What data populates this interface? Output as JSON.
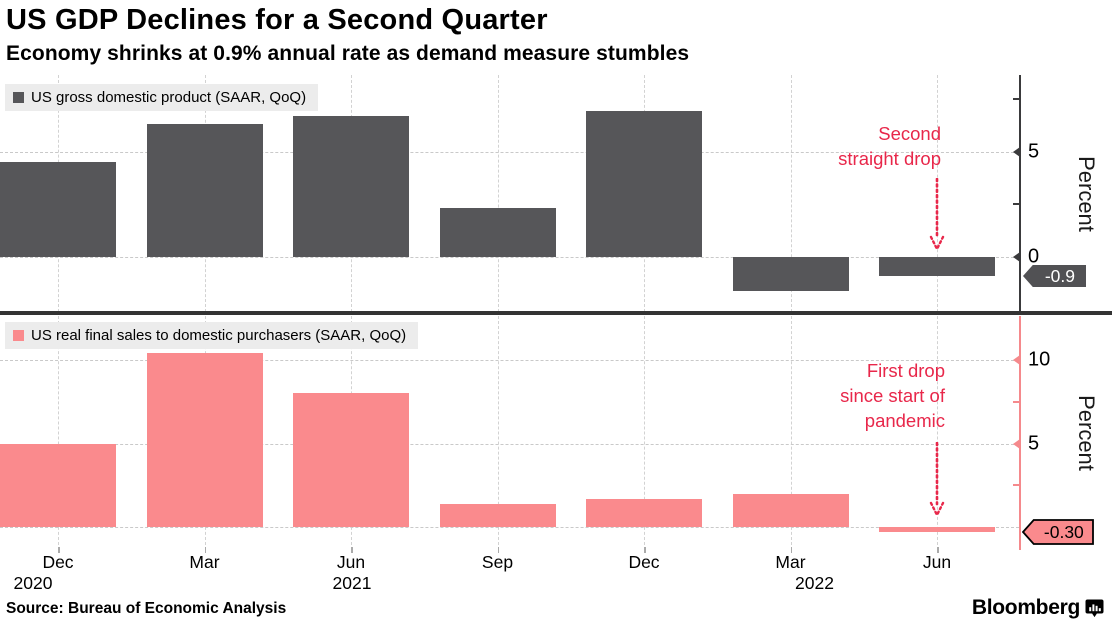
{
  "header": {
    "title": "US GDP Declines for a Second Quarter",
    "subtitle": "Economy shrinks at 0.9% annual rate as demand measure stumbles"
  },
  "source": "Source: Bureau of Economic Analysis",
  "brand": {
    "name": "Bloomberg",
    "icon": "bloomberg-chart-bubble-icon"
  },
  "x_axis": {
    "tick_labels": [
      "Dec",
      "Mar",
      "Jun",
      "Sep",
      "Dec",
      "Mar",
      "Jun"
    ],
    "year_labels": [
      {
        "text": "2020",
        "index": 0,
        "dx": -25
      },
      {
        "text": "2021",
        "index": 2,
        "dx": 1
      },
      {
        "text": "2022",
        "index": 5,
        "dx": 24
      }
    ]
  },
  "colors": {
    "gdp_bar": "#565659",
    "sales_bar": "#fa8a8d",
    "annotation_red": "#e8274a",
    "axis_dark": "#3a3a3c",
    "axis_pink": "#f5898c",
    "legend_bg": "#ececec",
    "badge_dark_bg": "#515154",
    "divider": "#333333"
  },
  "chart_data": [
    {
      "type": "bar",
      "legend": "US gross domestic product (SAAR, QoQ)",
      "categories": [
        "Dec 2020",
        "Mar 2021",
        "Jun 2021",
        "Sep 2021",
        "Dec 2021",
        "Mar 2022",
        "Jun 2022"
      ],
      "values": [
        4.5,
        6.3,
        6.7,
        2.3,
        6.9,
        -1.6,
        -0.9
      ],
      "ylabel": "Percent",
      "yticks_major": [
        0,
        5
      ],
      "yticks_minor": [
        2.5,
        7.5
      ],
      "ylim": [
        -2.7,
        8.6
      ],
      "grid": true,
      "legend_position": "top-left",
      "last_value_badge": "-0.9",
      "annotation": {
        "lines": [
          "Second",
          "straight drop"
        ],
        "target_index": 6
      }
    },
    {
      "type": "bar",
      "legend": "US real final sales to domestic purchasers (SAAR, QoQ)",
      "categories": [
        "Dec 2020",
        "Mar 2021",
        "Jun 2021",
        "Sep 2021",
        "Dec 2021",
        "Mar 2022",
        "Jun 2022"
      ],
      "values": [
        5.0,
        10.4,
        8.0,
        1.4,
        1.7,
        2.0,
        -0.3
      ],
      "ylabel": "Percent",
      "yticks_major": [
        5,
        10
      ],
      "yticks_minor": [
        2.5,
        7.5
      ],
      "ylim": [
        -1.6,
        12.6
      ],
      "grid": true,
      "legend_position": "top-left",
      "last_value_badge": "-0.30",
      "annotation": {
        "lines": [
          "First drop",
          "since start of",
          "pandemic"
        ],
        "target_index": 6
      }
    }
  ]
}
